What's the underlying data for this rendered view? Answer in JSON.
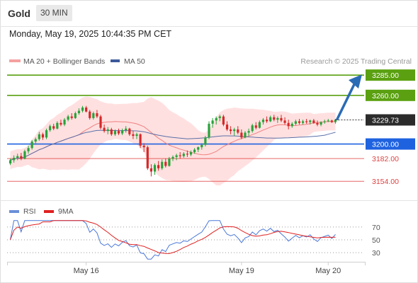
{
  "header": {
    "symbol": "Gold",
    "timeframe": "30 MIN",
    "datetime": "Monday, May 19, 2025 10:44:35 PM CET"
  },
  "legend": {
    "bb_label": "MA 20 + Bollinger Bands",
    "ma50_label": "MA 50",
    "credit": "Research © 2025 Trading Central",
    "rsi_label": "RSI",
    "ma9_label": "9MA"
  },
  "colors": {
    "candle_up": "#28a33a",
    "candle_down": "#d62828",
    "bb_fill": "#ffdada",
    "ma20": "#f08080",
    "ma50": "#5a6fa8",
    "resistance": "#5aa010",
    "pivot": "#1e62e0",
    "support": "#e04040",
    "arrow": "#2a6bb5",
    "rsi": "#4a78d8",
    "ma9": "#e02020"
  },
  "chart_data": {
    "type": "candlestick",
    "y_range": [
      3135,
      3293
    ],
    "x_labels": [
      "May 16",
      "May 19",
      "May 20"
    ],
    "current_price": 3229.73,
    "levels": [
      {
        "value": 3285.0,
        "label": "3285.00",
        "kind": "resistance"
      },
      {
        "value": 3260.0,
        "label": "3260.00",
        "kind": "resistance"
      },
      {
        "value": 3200.0,
        "label": "3200.00",
        "kind": "pivot"
      },
      {
        "value": 3182.0,
        "label": "3182.00",
        "kind": "support"
      },
      {
        "value": 3154.0,
        "label": "3154.00",
        "kind": "support"
      }
    ],
    "ohlc": [
      [
        3176,
        3182,
        3174,
        3180
      ],
      [
        3180,
        3186,
        3177,
        3183
      ],
      [
        3183,
        3188,
        3180,
        3185
      ],
      [
        3185,
        3189,
        3180,
        3182
      ],
      [
        3182,
        3193,
        3181,
        3191
      ],
      [
        3191,
        3198,
        3188,
        3195
      ],
      [
        3195,
        3205,
        3193,
        3203
      ],
      [
        3203,
        3208,
        3199,
        3206
      ],
      [
        3206,
        3215,
        3204,
        3212
      ],
      [
        3212,
        3214,
        3205,
        3208
      ],
      [
        3208,
        3219,
        3206,
        3217
      ],
      [
        3217,
        3224,
        3215,
        3222
      ],
      [
        3222,
        3225,
        3217,
        3219
      ],
      [
        3219,
        3228,
        3218,
        3226
      ],
      [
        3226,
        3230,
        3222,
        3224
      ],
      [
        3224,
        3232,
        3222,
        3230
      ],
      [
        3230,
        3236,
        3228,
        3234
      ],
      [
        3234,
        3238,
        3230,
        3232
      ],
      [
        3232,
        3240,
        3231,
        3238
      ],
      [
        3238,
        3244,
        3236,
        3241
      ],
      [
        3241,
        3247,
        3239,
        3245
      ],
      [
        3245,
        3247,
        3239,
        3240
      ],
      [
        3240,
        3242,
        3230,
        3232
      ],
      [
        3232,
        3240,
        3230,
        3238
      ],
      [
        3238,
        3242,
        3232,
        3234
      ],
      [
        3234,
        3236,
        3218,
        3220
      ],
      [
        3220,
        3224,
        3214,
        3216
      ],
      [
        3216,
        3221,
        3212,
        3218
      ],
      [
        3218,
        3220,
        3210,
        3212
      ],
      [
        3212,
        3218,
        3210,
        3216
      ],
      [
        3216,
        3219,
        3211,
        3213
      ],
      [
        3213,
        3219,
        3211,
        3217
      ],
      [
        3217,
        3222,
        3214,
        3219
      ],
      [
        3219,
        3220,
        3210,
        3212
      ],
      [
        3212,
        3216,
        3206,
        3210
      ],
      [
        3210,
        3214,
        3206,
        3212
      ],
      [
        3212,
        3213,
        3195,
        3198
      ],
      [
        3198,
        3201,
        3190,
        3196
      ],
      [
        3196,
        3198,
        3168,
        3170
      ],
      [
        3170,
        3175,
        3160,
        3166
      ],
      [
        3166,
        3176,
        3162,
        3174
      ],
      [
        3174,
        3179,
        3167,
        3170
      ],
      [
        3170,
        3181,
        3168,
        3178
      ],
      [
        3178,
        3182,
        3171,
        3173
      ],
      [
        3173,
        3184,
        3172,
        3182
      ],
      [
        3182,
        3186,
        3179,
        3184
      ],
      [
        3184,
        3188,
        3180,
        3186
      ],
      [
        3186,
        3190,
        3182,
        3185
      ],
      [
        3185,
        3190,
        3183,
        3188
      ],
      [
        3188,
        3192,
        3184,
        3187
      ],
      [
        3187,
        3192,
        3185,
        3190
      ],
      [
        3190,
        3195,
        3188,
        3193
      ],
      [
        3193,
        3197,
        3190,
        3196
      ],
      [
        3196,
        3201,
        3193,
        3199
      ],
      [
        3199,
        3210,
        3197,
        3208
      ],
      [
        3208,
        3228,
        3206,
        3225
      ],
      [
        3225,
        3232,
        3220,
        3229
      ],
      [
        3229,
        3234,
        3224,
        3232
      ],
      [
        3232,
        3236,
        3228,
        3234
      ],
      [
        3234,
        3236,
        3222,
        3224
      ],
      [
        3224,
        3228,
        3216,
        3218
      ],
      [
        3218,
        3222,
        3212,
        3216
      ],
      [
        3216,
        3220,
        3210,
        3218
      ],
      [
        3218,
        3222,
        3212,
        3214
      ],
      [
        3214,
        3218,
        3206,
        3208
      ],
      [
        3208,
        3216,
        3207,
        3214
      ],
      [
        3214,
        3219,
        3210,
        3216
      ],
      [
        3216,
        3225,
        3214,
        3223
      ],
      [
        3223,
        3227,
        3218,
        3220
      ],
      [
        3220,
        3229,
        3219,
        3227
      ],
      [
        3227,
        3232,
        3224,
        3230
      ],
      [
        3230,
        3234,
        3226,
        3228
      ],
      [
        3228,
        3235,
        3227,
        3233
      ],
      [
        3233,
        3236,
        3228,
        3230
      ],
      [
        3230,
        3234,
        3226,
        3232
      ],
      [
        3232,
        3236,
        3227,
        3229
      ],
      [
        3229,
        3233,
        3224,
        3226
      ],
      [
        3226,
        3230,
        3218,
        3222
      ],
      [
        3222,
        3227,
        3220,
        3225
      ],
      [
        3225,
        3230,
        3223,
        3228
      ],
      [
        3228,
        3231,
        3224,
        3226
      ],
      [
        3226,
        3230,
        3224,
        3228
      ],
      [
        3228,
        3231,
        3225,
        3227
      ],
      [
        3227,
        3230,
        3224,
        3229
      ],
      [
        3229,
        3231,
        3225,
        3226
      ],
      [
        3226,
        3229,
        3222,
        3224
      ],
      [
        3224,
        3228,
        3222,
        3227
      ],
      [
        3227,
        3230,
        3225,
        3228
      ],
      [
        3228,
        3231,
        3227,
        3229
      ],
      [
        3229,
        3230,
        3226,
        3227
      ],
      [
        3227,
        3231,
        3225,
        3230
      ]
    ],
    "arrow": {
      "from": 3229.73,
      "to": 3285
    },
    "rsi": {
      "levels": [
        70,
        50,
        30
      ],
      "level_labels": [
        "70",
        "50",
        "30"
      ],
      "y_range": [
        18,
        82
      ]
    }
  }
}
